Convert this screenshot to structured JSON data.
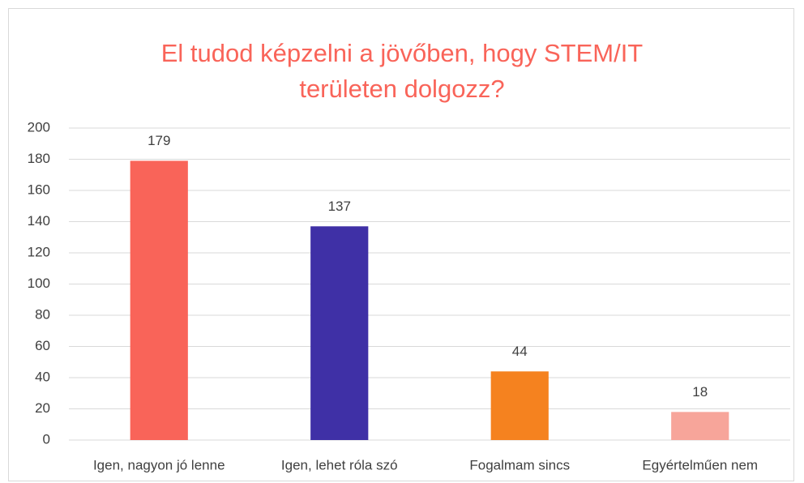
{
  "chart_data": {
    "type": "bar",
    "title": "El tudod képzelni a jövőben, hogy STEM/IT területen dolgozz?",
    "categories": [
      "Igen, nagyon jó lenne",
      "Igen, lehet róla szó",
      "Fogalmam sincs",
      "Egyértelműen nem"
    ],
    "values": [
      179,
      137,
      44,
      18
    ],
    "colors": [
      "#f96459",
      "#3f30a6",
      "#f5821f",
      "#f7a59a"
    ],
    "ylim": [
      0,
      200
    ],
    "yticks": [
      0,
      20,
      40,
      60,
      80,
      100,
      120,
      140,
      160,
      180,
      200
    ],
    "grid": true
  }
}
